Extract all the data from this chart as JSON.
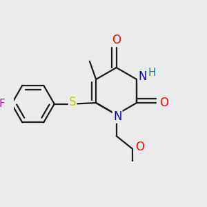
{
  "bg_color": "#ebebeb",
  "bond_color": "#1a1a1a",
  "bond_lw": 1.6,
  "atom_colors": {
    "O": "#ff0000",
    "N": "#0000cc",
    "S": "#cccc00",
    "F": "#cc00cc",
    "H_N": "#008888",
    "H_O": "#ff0000",
    "C": "#1a1a1a"
  },
  "font_size": 11,
  "fig_size": [
    3.0,
    3.0
  ],
  "dpi": 100
}
